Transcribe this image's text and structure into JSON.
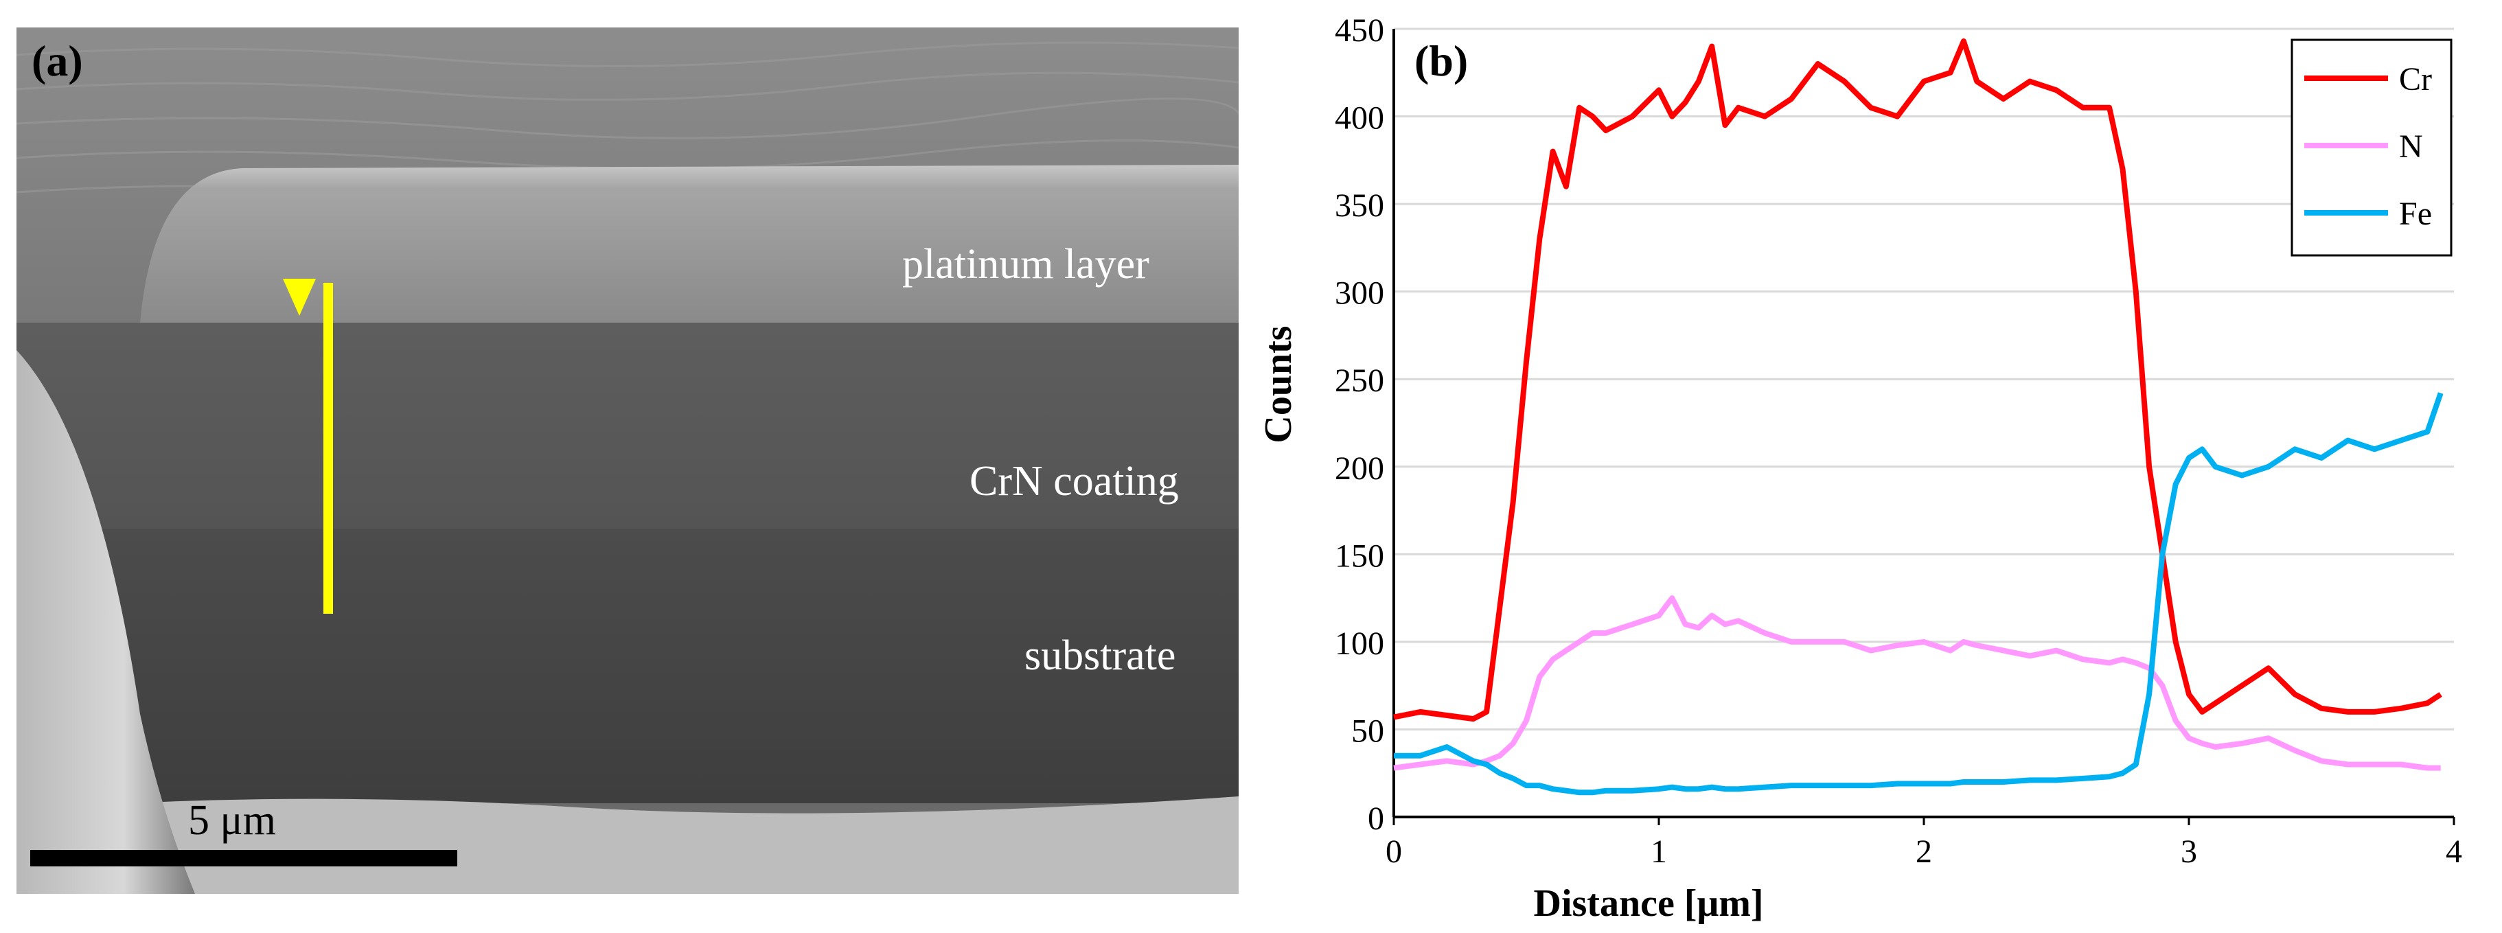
{
  "panel_a": {
    "tag": "(a)",
    "labels": {
      "platinum": "platinum layer",
      "coating": "CrN coating",
      "substrate": "substrate"
    },
    "scale_bar": "5 μm",
    "colors": {
      "marker": "#ffff00",
      "scale_bar": "#000000"
    }
  },
  "panel_b": {
    "tag": "(b)"
  },
  "chart_data": {
    "type": "line",
    "title": "",
    "xlabel": "Distance [μm]",
    "ylabel": "Counts",
    "xlim": [
      0,
      4
    ],
    "ylim": [
      0,
      450
    ],
    "xticks": [
      0,
      1,
      2,
      3,
      4
    ],
    "yticks": [
      0,
      50,
      100,
      150,
      200,
      250,
      300,
      350,
      400,
      450
    ],
    "grid": "horizontal",
    "legend_position": "top-right",
    "x": [
      0,
      0.1,
      0.2,
      0.3,
      0.35,
      0.4,
      0.45,
      0.5,
      0.55,
      0.6,
      0.65,
      0.7,
      0.75,
      0.8,
      0.9,
      1.0,
      1.05,
      1.1,
      1.15,
      1.2,
      1.25,
      1.3,
      1.4,
      1.5,
      1.6,
      1.7,
      1.8,
      1.9,
      2.0,
      2.1,
      2.15,
      2.2,
      2.3,
      2.4,
      2.5,
      2.6,
      2.7,
      2.75,
      2.8,
      2.85,
      2.9,
      2.95,
      3.0,
      3.05,
      3.1,
      3.2,
      3.3,
      3.4,
      3.5,
      3.6,
      3.7,
      3.8,
      3.9,
      3.95
    ],
    "series": [
      {
        "name": "Cr",
        "color": "#ff0000",
        "values": [
          57,
          60,
          58,
          56,
          60,
          120,
          180,
          260,
          330,
          380,
          360,
          405,
          400,
          392,
          400,
          415,
          400,
          408,
          420,
          440,
          395,
          405,
          400,
          410,
          430,
          420,
          405,
          400,
          420,
          425,
          443,
          420,
          410,
          420,
          415,
          405,
          405,
          370,
          300,
          200,
          150,
          100,
          70,
          60,
          65,
          75,
          85,
          70,
          62,
          60,
          60,
          62,
          65,
          70
        ]
      },
      {
        "name": "N",
        "color": "#ff99ff",
        "values": [
          28,
          30,
          32,
          30,
          32,
          35,
          42,
          55,
          80,
          90,
          95,
          100,
          105,
          105,
          110,
          115,
          125,
          110,
          108,
          115,
          110,
          112,
          105,
          100,
          100,
          100,
          95,
          98,
          100,
          95,
          100,
          98,
          95,
          92,
          95,
          90,
          88,
          90,
          88,
          85,
          75,
          55,
          45,
          42,
          40,
          42,
          45,
          38,
          32,
          30,
          30,
          30,
          28,
          28
        ]
      },
      {
        "name": "Fe",
        "color": "#00b0f0",
        "values": [
          35,
          35,
          40,
          32,
          30,
          25,
          22,
          18,
          18,
          16,
          15,
          14,
          14,
          15,
          15,
          16,
          17,
          16,
          16,
          17,
          16,
          16,
          17,
          18,
          18,
          18,
          18,
          19,
          19,
          19,
          20,
          20,
          20,
          21,
          21,
          22,
          23,
          25,
          30,
          70,
          150,
          190,
          205,
          210,
          200,
          195,
          200,
          210,
          205,
          215,
          210,
          215,
          220,
          242
        ]
      }
    ]
  }
}
